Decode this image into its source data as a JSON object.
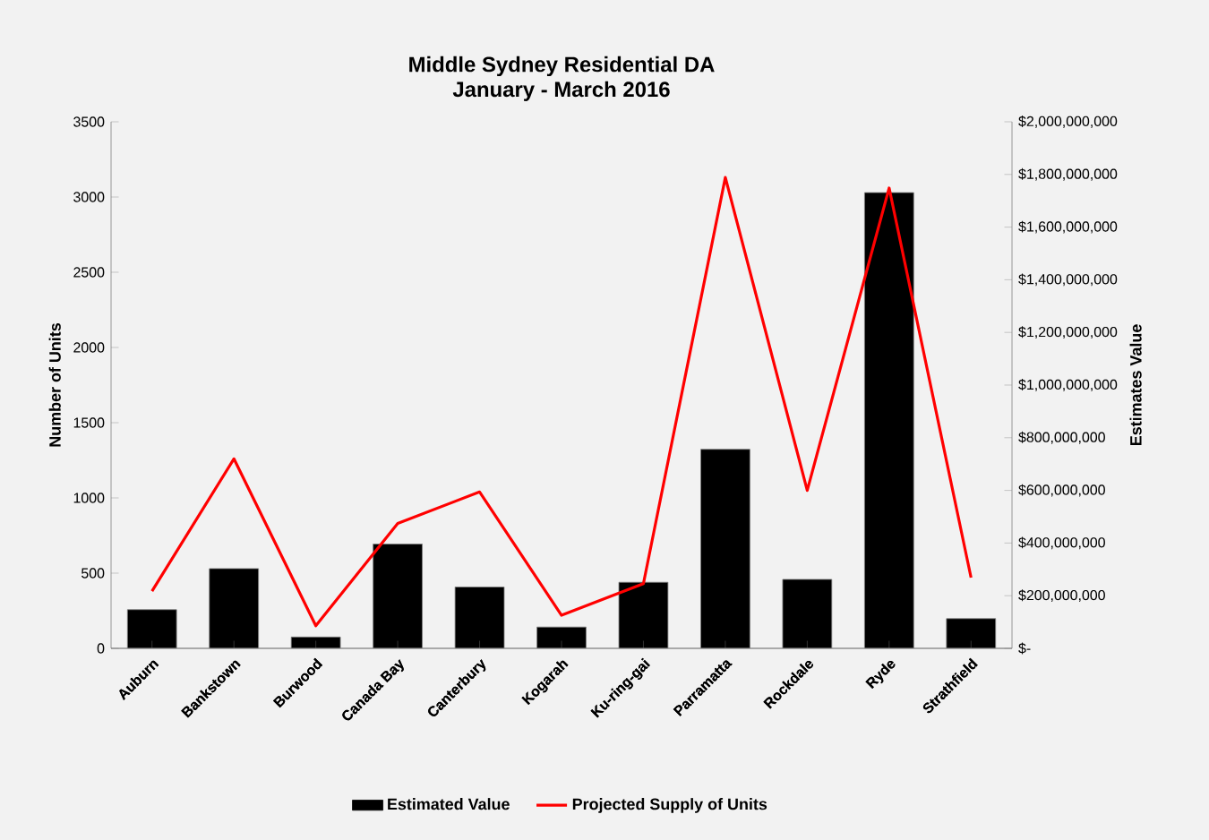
{
  "chart_data": {
    "type": "bar",
    "title": "Middle Sydney Residential DA",
    "subtitle": "January - March 2016",
    "ylabel": "Number of Units",
    "y2label": "Estimates Value",
    "categories": [
      "Auburn",
      "Bankstown",
      "Burwood",
      "Canada Bay",
      "Canterbury",
      "Kogarah",
      "Ku-ring-gai",
      "Parramatta",
      "Rockdale",
      "Ryde",
      "Strathfield"
    ],
    "series": [
      {
        "name": "Estimated Value",
        "axis": "y2",
        "color": "#000000",
        "values": [
          147000000,
          303000000,
          43000000,
          396000000,
          233000000,
          81000000,
          251000000,
          756000000,
          262000000,
          1731000000,
          113000000
        ]
      },
      {
        "name": "Projected Supply of Units",
        "type": "line",
        "color": "#ff0000",
        "values": [
          380,
          1260,
          150,
          830,
          1040,
          220,
          430,
          3130,
          1050,
          3060,
          470
        ]
      }
    ],
    "ylim": [
      0,
      3500
    ],
    "yticks": [
      0,
      500,
      1000,
      1500,
      2000,
      2500,
      3000,
      3500
    ],
    "y2lim": [
      0,
      2000000000
    ],
    "y2ticks": [
      {
        "value": 0,
        "label": "$-"
      },
      {
        "value": 200000000,
        "label": "$200,000,000"
      },
      {
        "value": 400000000,
        "label": "$400,000,000"
      },
      {
        "value": 600000000,
        "label": "$600,000,000"
      },
      {
        "value": 800000000,
        "label": "$800,000,000"
      },
      {
        "value": 1000000000,
        "label": "$1,000,000,000"
      },
      {
        "value": 1200000000,
        "label": "$1,200,000,000"
      },
      {
        "value": 1400000000,
        "label": "$1,400,000,000"
      },
      {
        "value": 1600000000,
        "label": "$1,600,000,000"
      },
      {
        "value": 1800000000,
        "label": "$1,800,000,000"
      },
      {
        "value": 2000000000,
        "label": "$2,000,000,000"
      }
    ],
    "legend": "bottom",
    "grid": false
  }
}
